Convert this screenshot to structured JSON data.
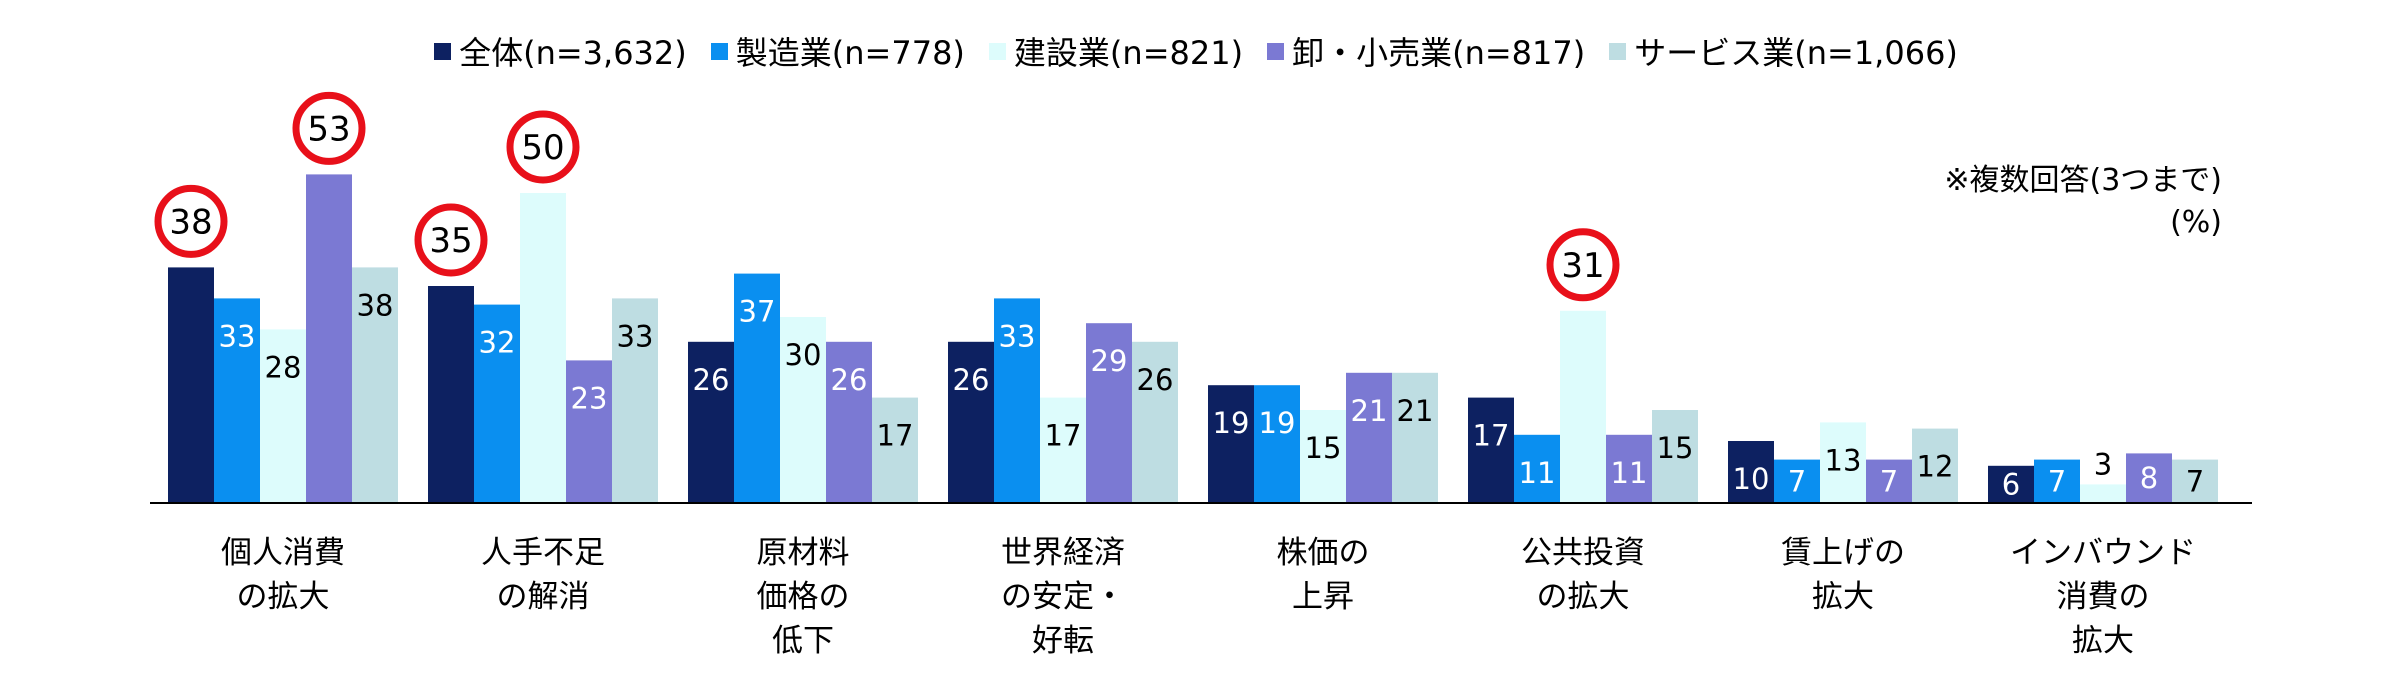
{
  "chart_data": {
    "type": "bar",
    "note": "※複数回答(3つまで)",
    "unit": "(%)",
    "ylim": [
      0,
      60
    ],
    "categories": [
      [
        "個人消費",
        "の拡大"
      ],
      [
        "人手不足",
        "の解消"
      ],
      [
        "原材料",
        "価格の",
        "低下"
      ],
      [
        "世界経済",
        "の安定・",
        "好転"
      ],
      [
        "株価の",
        "上昇"
      ],
      [
        "公共投資",
        "の拡大"
      ],
      [
        "賃上げの",
        "拡大"
      ],
      [
        "インバウンド",
        "消費の",
        "拡大"
      ]
    ],
    "series": [
      {
        "name": "全体(n=3,632)",
        "color": "#0d2161",
        "values": [
          38,
          35,
          26,
          26,
          19,
          17,
          10,
          6
        ]
      },
      {
        "name": "製造業(n=778)",
        "color": "#0a8ff0",
        "values": [
          33,
          32,
          37,
          33,
          19,
          11,
          7,
          7
        ]
      },
      {
        "name": "建設業(n=821)",
        "color": "#ddfcfc",
        "values": [
          28,
          50,
          30,
          17,
          15,
          31,
          13,
          3
        ]
      },
      {
        "name": "卸・小売業(n=817)",
        "color": "#7b79d3",
        "values": [
          53,
          23,
          26,
          29,
          21,
          11,
          7,
          8
        ]
      },
      {
        "name": "サービス業(n=1,066)",
        "color": "#bedde2",
        "values": [
          38,
          33,
          17,
          26,
          21,
          15,
          12,
          7
        ]
      }
    ],
    "highlights": [
      {
        "series": 0,
        "category": 0
      },
      {
        "series": 3,
        "category": 0
      },
      {
        "series": 0,
        "category": 1
      },
      {
        "series": 2,
        "category": 1
      },
      {
        "series": 2,
        "category": 5
      }
    ],
    "highlight_color": "#e8101a",
    "grid": false,
    "legend": "top-center"
  }
}
